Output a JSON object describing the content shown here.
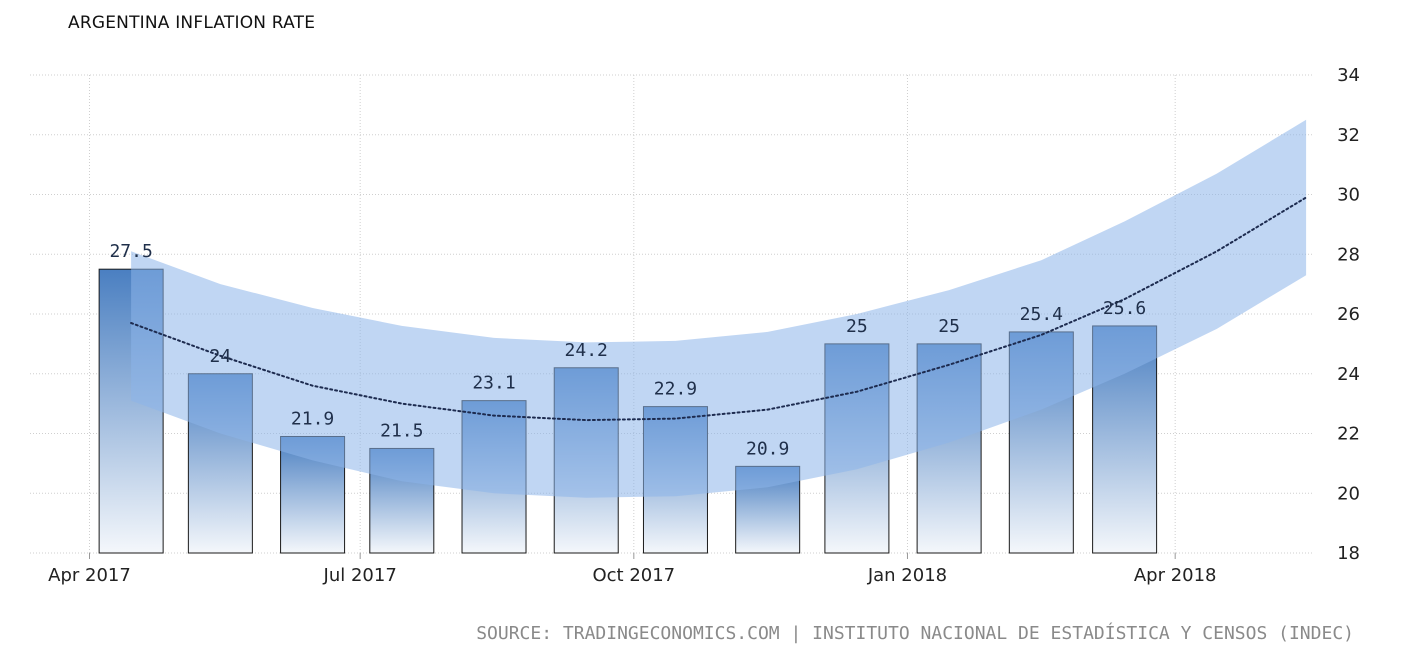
{
  "chart": {
    "title": "ARGENTINA INFLATION RATE",
    "source": "SOURCE: TRADINGECONOMICS.COM | INSTITUTO NACIONAL DE ESTADÍSTICA Y CENSOS (INDEC)"
  },
  "chart_data": {
    "type": "bar",
    "title": "ARGENTINA INFLATION RATE",
    "xlabel": "",
    "ylabel": "",
    "x_unit": "month",
    "categories": [
      "2017-04",
      "2017-05",
      "2017-06",
      "2017-07",
      "2017-08",
      "2017-09",
      "2017-10",
      "2017-11",
      "2017-12",
      "2018-01",
      "2018-02",
      "2018-03"
    ],
    "values": [
      27.5,
      24,
      21.9,
      21.5,
      23.1,
      24.2,
      22.9,
      20.9,
      25,
      25,
      25.4,
      25.6
    ],
    "data_labels": [
      "27.5",
      "24",
      "21.9",
      "21.5",
      "23.1",
      "24.2",
      "22.9",
      "20.9",
      "25",
      "25",
      "25.4",
      "25.6"
    ],
    "x_ticks": [
      {
        "month": "2017-04",
        "label": "Apr 2017"
      },
      {
        "month": "2017-07",
        "label": "Jul 2017"
      },
      {
        "month": "2017-10",
        "label": "Oct 2017"
      },
      {
        "month": "2018-01",
        "label": "Jan 2018"
      },
      {
        "month": "2018-04",
        "label": "Apr 2018"
      }
    ],
    "y_ticks": [
      18,
      20,
      22,
      24,
      26,
      28,
      30,
      32,
      34
    ],
    "ylim": [
      18,
      34
    ],
    "xlim": [
      "2017-03-12",
      "2018-05-17"
    ],
    "y_axis_side": "right",
    "grid": true,
    "trend_line": {
      "style": "dotted",
      "x": [
        "2017-04",
        "2017-05",
        "2017-06",
        "2017-07",
        "2017-08",
        "2017-09",
        "2017-10",
        "2017-11",
        "2017-12",
        "2018-01",
        "2018-02",
        "2018-03",
        "2018-04",
        "2018-05"
      ],
      "values": [
        25.7,
        24.6,
        23.6,
        23.0,
        22.6,
        22.45,
        22.5,
        22.8,
        23.4,
        24.3,
        25.3,
        26.5,
        28.1,
        29.9
      ]
    },
    "forecast_band": {
      "x": [
        "2017-04",
        "2017-05",
        "2017-06",
        "2017-07",
        "2017-08",
        "2017-09",
        "2017-10",
        "2017-11",
        "2017-12",
        "2018-01",
        "2018-02",
        "2018-03",
        "2018-04",
        "2018-05"
      ],
      "upper": [
        28.1,
        27.0,
        26.2,
        25.6,
        25.2,
        25.05,
        25.1,
        25.4,
        26.0,
        26.8,
        27.8,
        29.1,
        30.7,
        32.5
      ],
      "lower": [
        23.1,
        22.0,
        21.1,
        20.4,
        20.0,
        19.85,
        19.9,
        20.2,
        20.8,
        21.7,
        22.8,
        24.0,
        25.5,
        27.3
      ]
    },
    "colors": {
      "bar_top": "#4a7fc1",
      "bar_bottom": "#f4f7fb",
      "bar_outline": "#1a1a1a",
      "band_fill": "#8db4ea",
      "trend_line": "#1d2b4f",
      "grid": "#cfcfcf"
    }
  }
}
